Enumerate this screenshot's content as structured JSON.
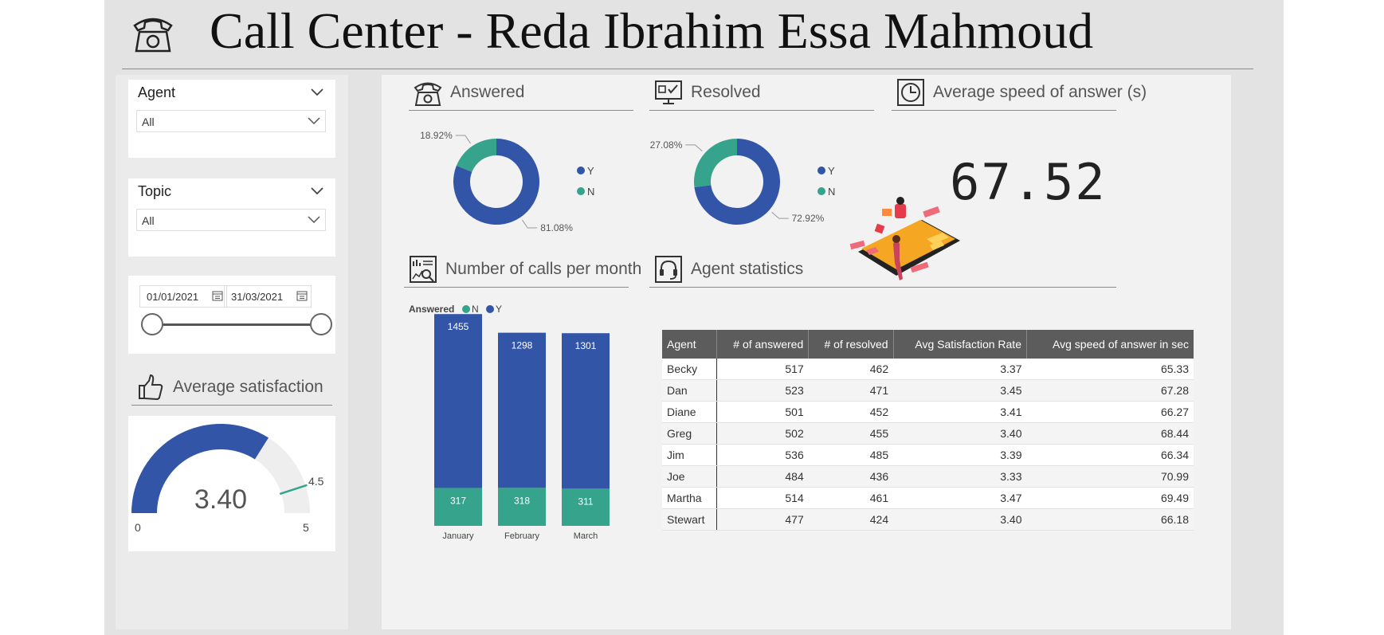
{
  "page": {
    "title": "Call Center - Reda Ibrahim Essa Mahmoud"
  },
  "colors": {
    "canvas": "#e3e3e3",
    "primary_blue": "#3355a8",
    "teal": "#36a48c",
    "gauge_rest": "#eeeeee",
    "table_header": "#5c5c5c"
  },
  "filters": {
    "agent": {
      "label": "Agent",
      "value": "All"
    },
    "topic": {
      "label": "Topic",
      "value": "All"
    },
    "date_range": {
      "start": "01/01/2021",
      "end": "31/03/2021"
    }
  },
  "sections": {
    "answered": {
      "title": "Answered",
      "icon": "telephone-icon"
    },
    "resolved": {
      "title": "Resolved",
      "icon": "monitor-check-icon"
    },
    "speed": {
      "title": "Average speed of answer (s)",
      "icon": "clock-icon"
    },
    "calls_per_month": {
      "title": "Number of calls per month",
      "icon": "report-chart-icon"
    },
    "agent_stats": {
      "title": "Agent statistics",
      "icon": "headset-icon"
    },
    "satisfaction": {
      "title": "Average satisfaction",
      "icon": "thumbs-up-icon"
    }
  },
  "kpi": {
    "average_speed_of_answer": "67.52"
  },
  "chart_data": [
    {
      "type": "pie",
      "name": "Answered",
      "donut": true,
      "slices": [
        {
          "label": "Y",
          "value": 81.08,
          "display": "81.08%",
          "color": "#3355a8"
        },
        {
          "label": "N",
          "value": 18.92,
          "display": "18.92%",
          "color": "#36a48c"
        }
      ],
      "legend": [
        "Y",
        "N"
      ],
      "legend_position": "right"
    },
    {
      "type": "pie",
      "name": "Resolved",
      "donut": true,
      "slices": [
        {
          "label": "Y",
          "value": 72.92,
          "display": "72.92%",
          "color": "#3355a8"
        },
        {
          "label": "N",
          "value": 27.08,
          "display": "27.08%",
          "color": "#36a48c"
        }
      ],
      "legend": [
        "Y",
        "N"
      ],
      "legend_position": "right"
    },
    {
      "type": "bar",
      "stacked": true,
      "legend_title": "Answered",
      "legend": [
        "N",
        "Y"
      ],
      "categories": [
        "January",
        "February",
        "March"
      ],
      "series": [
        {
          "name": "N",
          "values": [
            317,
            318,
            311
          ],
          "color": "#36a48c"
        },
        {
          "name": "Y",
          "values": [
            1455,
            1298,
            1301
          ],
          "color": "#3355a8"
        }
      ],
      "ylim": [
        0,
        1800
      ]
    },
    {
      "type": "gauge",
      "name": "Average satisfaction",
      "value": 3.4,
      "value_display": "3.40",
      "min": 0,
      "max": 5,
      "target": 4.5,
      "min_label": "0",
      "max_label": "5",
      "target_label": "4.5"
    }
  ],
  "agent_table": {
    "columns": [
      "Agent",
      "# of answered",
      "# of resolved",
      "Avg Satisfaction Rate",
      "Avg speed of answer in sec"
    ],
    "rows": [
      [
        "Becky",
        "517",
        "462",
        "3.37",
        "65.33"
      ],
      [
        "Dan",
        "523",
        "471",
        "3.45",
        "67.28"
      ],
      [
        "Diane",
        "501",
        "452",
        "3.41",
        "66.27"
      ],
      [
        "Greg",
        "502",
        "455",
        "3.40",
        "68.44"
      ],
      [
        "Jim",
        "536",
        "485",
        "3.39",
        "66.34"
      ],
      [
        "Joe",
        "484",
        "436",
        "3.33",
        "70.99"
      ],
      [
        "Martha",
        "514",
        "461",
        "3.47",
        "69.49"
      ],
      [
        "Stewart",
        "477",
        "424",
        "3.40",
        "66.18"
      ]
    ]
  }
}
